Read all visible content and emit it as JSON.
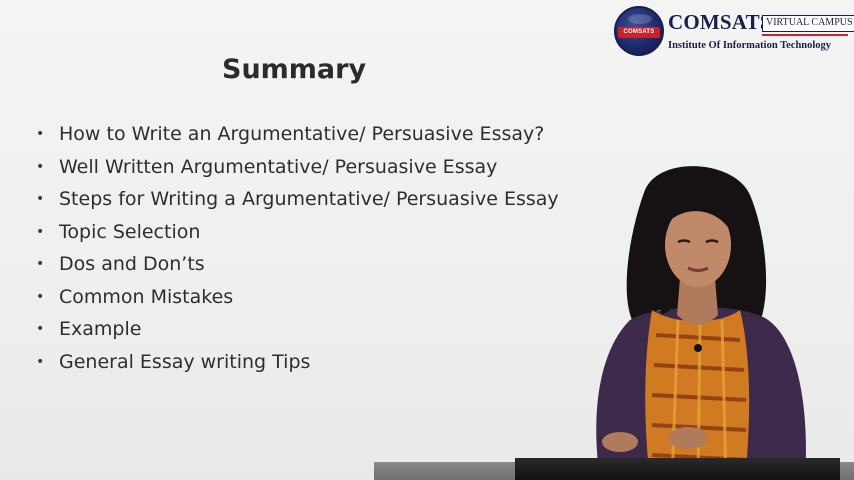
{
  "logo": {
    "brand": "COMSATS",
    "badge": "VIRTUAL CAMPUS",
    "institute": "Institute Of Information Technology",
    "seal_text": "COMSATS"
  },
  "slide": {
    "title": "Summary",
    "bullet_symbol": "•",
    "bullets": [
      "How to Write an Argumentative/ Persuasive Essay?",
      "Well Written Argumentative/ Persuasive Essay",
      "Steps for Writing a Argumentative/ Persuasive Essay",
      "Topic Selection",
      "Dos and Don’ts",
      "Common Mistakes",
      "Example",
      "General Essay writing Tips"
    ]
  },
  "colors": {
    "logo_navy": "#1a1f4a",
    "logo_red": "#c9232a",
    "text": "#2e2e2e"
  }
}
